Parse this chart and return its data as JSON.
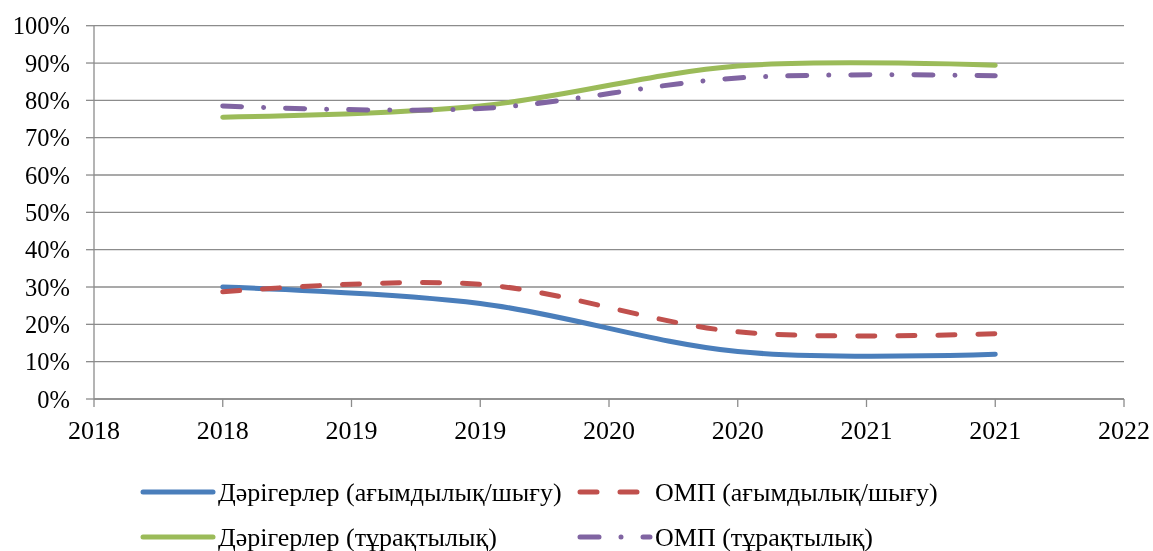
{
  "chart_data": {
    "type": "line",
    "x": [
      2018,
      2019,
      2020,
      2021
    ],
    "series": [
      {
        "name": "Дәрігерлер (ағымдылық/шығу)",
        "color": "#4a7ebb",
        "values": [
          30,
          25.6,
          12.7,
          12
        ],
        "line_style": "solid"
      },
      {
        "name": "ОМП (ағымдылық/шығу)",
        "color": "#c0504d",
        "values": [
          28.7,
          30.7,
          18,
          17.5
        ],
        "line_style": "dashed"
      },
      {
        "name": "Дәрігерлер (тұрақтылық)",
        "color": "#9bbb59",
        "values": [
          75.5,
          78.5,
          89.2,
          89.4
        ],
        "line_style": "solid"
      },
      {
        "name": "ОМП (тұрақтылық)",
        "color": "#8064a2",
        "values": [
          78.5,
          77.8,
          86,
          86.6
        ],
        "line_style": "dashdot"
      }
    ],
    "xlim": [
      2017.5,
      2021.5
    ],
    "xticks": [
      {
        "value": 2017.5,
        "label": "2018"
      },
      2018,
      {
        "value": 2018.5,
        "label": "2019"
      },
      2019,
      {
        "value": 2019.5,
        "label": "2020"
      },
      2020,
      {
        "value": 2020.5,
        "label": "2021"
      },
      2021,
      {
        "value": 2021.5,
        "label": "2022"
      }
    ],
    "ylim": [
      0,
      100
    ],
    "yticks": [
      {
        "value": 0,
        "label": "0%"
      },
      {
        "value": 10,
        "label": "10%"
      },
      {
        "value": 20,
        "label": "20%"
      },
      {
        "value": 30,
        "label": "30%"
      },
      {
        "value": 40,
        "label": "40%"
      },
      {
        "value": 50,
        "label": "50%"
      },
      {
        "value": 60,
        "label": "60%"
      },
      {
        "value": 70,
        "label": "70%"
      },
      {
        "value": 80,
        "label": "80%"
      },
      {
        "value": 90,
        "label": "90%"
      },
      {
        "value": 100,
        "label": "100%"
      }
    ],
    "grid": "y",
    "legend": "bottom"
  }
}
